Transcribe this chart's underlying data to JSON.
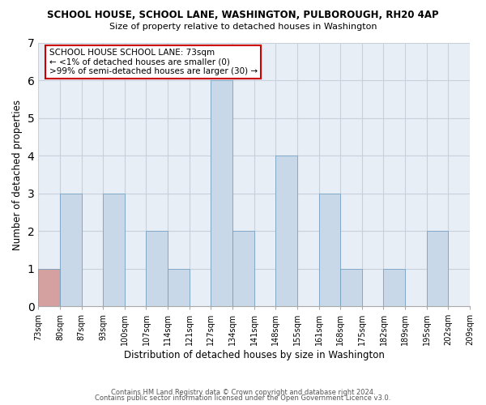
{
  "title1": "SCHOOL HOUSE, SCHOOL LANE, WASHINGTON, PULBOROUGH, RH20 4AP",
  "title2": "Size of property relative to detached houses in Washington",
  "xlabel": "Distribution of detached houses by size in Washington",
  "ylabel": "Number of detached properties",
  "footnote1": "Contains HM Land Registry data © Crown copyright and database right 2024.",
  "footnote2": "Contains public sector information licensed under the Open Government Licence v3.0.",
  "bin_edges": [
    "73sqm",
    "80sqm",
    "87sqm",
    "93sqm",
    "100sqm",
    "107sqm",
    "114sqm",
    "121sqm",
    "127sqm",
    "134sqm",
    "141sqm",
    "148sqm",
    "155sqm",
    "161sqm",
    "168sqm",
    "175sqm",
    "182sqm",
    "189sqm",
    "195sqm",
    "202sqm",
    "209sqm"
  ],
  "bin_values": [
    1,
    3,
    0,
    3,
    0,
    2,
    1,
    0,
    6,
    2,
    0,
    4,
    0,
    3,
    1,
    0,
    1,
    0,
    2,
    0
  ],
  "highlight_bin_index": 0,
  "highlight_color": "#c8d8e8",
  "highlight_bar_color": "#d4a0a0",
  "normal_color": "#c8d8e8",
  "bar_edge_color": "#6699bb",
  "annotation_title": "SCHOOL HOUSE SCHOOL LANE: 73sqm",
  "annotation_line1": "← <1% of detached houses are smaller (0)",
  "annotation_line2": ">99% of semi-detached houses are larger (30) →",
  "annotation_box_color": "#ffffff",
  "annotation_box_edgecolor": "#cc0000",
  "ylim": [
    0,
    7
  ],
  "yticks": [
    0,
    1,
    2,
    3,
    4,
    5,
    6,
    7
  ],
  "background_color": "#ffffff",
  "grid_color": "#c8d0dc",
  "plot_bg_color": "#e8eef5"
}
